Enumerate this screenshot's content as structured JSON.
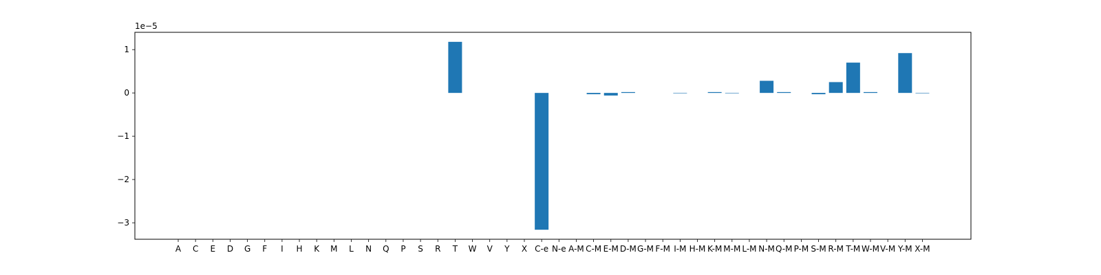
{
  "chart_data": {
    "type": "bar",
    "title": "",
    "xlabel": "",
    "ylabel": "",
    "y_offset_label": "1e−5",
    "ylim": [
      -3.38,
      1.4
    ],
    "yticks": [
      -3,
      -2,
      -1,
      0,
      1
    ],
    "ytick_labels": [
      "−3",
      "−2",
      "−1",
      "0",
      "1"
    ],
    "grid": false,
    "legend": "none",
    "bar_color": "#1f77b4",
    "categories": [
      "A",
      "C",
      "E",
      "D",
      "G",
      "F",
      "I",
      "H",
      "K",
      "M",
      "L",
      "N",
      "Q",
      "P",
      "S",
      "R",
      "T",
      "W",
      "V",
      "Y",
      "X",
      "C-e",
      "N-e",
      "A-M",
      "C-M",
      "E-M",
      "D-M",
      "G-M",
      "F-M",
      "I-M",
      "H-M",
      "K-M",
      "M-M",
      "L-M",
      "N-M",
      "Q-M",
      "P-M",
      "S-M",
      "R-M",
      "T-M",
      "W-M",
      "V-M",
      "Y-M",
      "X-M"
    ],
    "values": [
      0,
      0,
      0,
      0,
      0,
      0,
      0,
      0,
      0,
      0,
      0,
      0,
      0,
      0,
      0,
      0,
      1.18,
      0,
      0,
      0,
      0,
      -3.16,
      0,
      0,
      -0.03,
      -0.06,
      0.02,
      0,
      0,
      -0.01,
      0,
      0.02,
      -0.01,
      0,
      0.28,
      0.02,
      0,
      -0.03,
      0.25,
      0.7,
      0.02,
      0,
      0.92,
      -0.01
    ]
  }
}
